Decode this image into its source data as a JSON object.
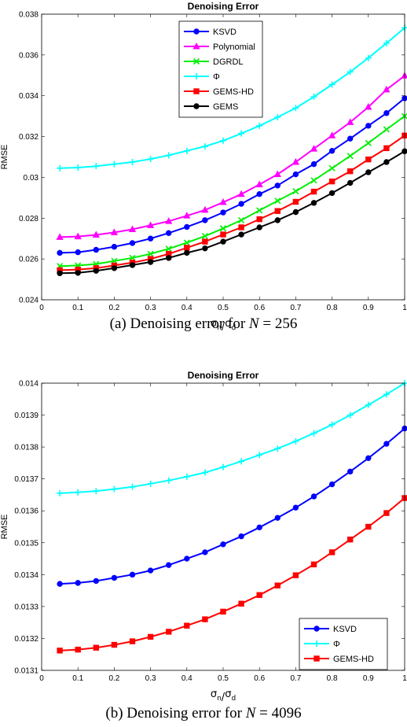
{
  "figure": {
    "captions": [
      {
        "prefix": "(a) Denoising error for ",
        "var": "N",
        "suffix": " = 256"
      },
      {
        "prefix": "(b) Denoising error for ",
        "var": "N",
        "suffix": " = 4096"
      }
    ]
  },
  "chart_data": [
    {
      "type": "line",
      "title": "Denoising Error",
      "xlabel": "σn/σd",
      "ylabel": "RMSE",
      "xlim": [
        0,
        1
      ],
      "ylim": [
        0.024,
        0.038
      ],
      "xticks": [
        0,
        0.1,
        0.2,
        0.3,
        0.4,
        0.5,
        0.6,
        0.7,
        0.8,
        0.9,
        1
      ],
      "xtick_labels": [
        "0",
        "0.1",
        "0.2",
        "0.3",
        "0.4",
        "0.5",
        "0.6",
        "0.7",
        "0.8",
        "0.9",
        "1"
      ],
      "yticks": [
        0.024,
        0.026,
        0.028,
        0.03,
        0.032,
        0.034,
        0.036,
        0.038
      ],
      "ytick_labels": [
        "0.024",
        "0.026",
        "0.028",
        "0.03",
        "0.032",
        "0.034",
        "0.036",
        "0.038"
      ],
      "legend_position": "top-center",
      "x": [
        0.05,
        0.1,
        0.15,
        0.2,
        0.25,
        0.3,
        0.35,
        0.4,
        0.45,
        0.5,
        0.55,
        0.6,
        0.65,
        0.7,
        0.75,
        0.8,
        0.85,
        0.9,
        0.95,
        1.0
      ],
      "series": [
        {
          "name": "KSVD",
          "color": "#0000ff",
          "marker": "circle",
          "values": [
            0.0263,
            0.02633,
            0.02645,
            0.0266,
            0.02678,
            0.027,
            0.02727,
            0.02757,
            0.0279,
            0.02828,
            0.0287,
            0.02918,
            0.0296,
            0.03015,
            0.03065,
            0.0313,
            0.0319,
            0.03253,
            0.03315,
            0.03388
          ]
        },
        {
          "name": "Polynomial",
          "color": "#ff00ff",
          "marker": "triangle",
          "values": [
            0.02707,
            0.0271,
            0.02718,
            0.0273,
            0.02745,
            0.02765,
            0.02785,
            0.02812,
            0.0284,
            0.02878,
            0.02918,
            0.02965,
            0.03015,
            0.03075,
            0.0314,
            0.03205,
            0.0327,
            0.03345,
            0.0343,
            0.03498
          ]
        },
        {
          "name": "DGRDL",
          "color": "#00ee00",
          "marker": "x",
          "values": [
            0.02565,
            0.02568,
            0.02575,
            0.0259,
            0.02605,
            0.02625,
            0.0265,
            0.0268,
            0.02712,
            0.0275,
            0.0279,
            0.02838,
            0.02885,
            0.02932,
            0.02985,
            0.03045,
            0.03105,
            0.03168,
            0.03235,
            0.033
          ]
        },
        {
          "name": "Φ",
          "color": "#00ffff",
          "marker": "plus",
          "values": [
            0.03045,
            0.03048,
            0.03055,
            0.03065,
            0.03075,
            0.0309,
            0.03108,
            0.0313,
            0.03152,
            0.0318,
            0.03215,
            0.03253,
            0.03295,
            0.0334,
            0.03395,
            0.03455,
            0.03517,
            0.03585,
            0.03658,
            0.03733
          ]
        },
        {
          "name": "GEMS-HD",
          "color": "#ff0000",
          "marker": "square",
          "values": [
            0.02545,
            0.02548,
            0.02555,
            0.02568,
            0.02582,
            0.026,
            0.02625,
            0.02655,
            0.02685,
            0.0272,
            0.02755,
            0.02795,
            0.02835,
            0.0288,
            0.0293,
            0.0298,
            0.0303,
            0.03088,
            0.03143,
            0.03205
          ]
        },
        {
          "name": "GEMS",
          "color": "#000000",
          "marker": "circle",
          "values": [
            0.0253,
            0.02532,
            0.02542,
            0.02555,
            0.0257,
            0.02585,
            0.02605,
            0.0263,
            0.02652,
            0.02685,
            0.0272,
            0.02755,
            0.0279,
            0.0283,
            0.02875,
            0.02923,
            0.02973,
            0.03025,
            0.03075,
            0.03128
          ]
        }
      ]
    },
    {
      "type": "line",
      "title": "Denoising Error",
      "xlabel": "σn/σd",
      "ylabel": "RMSE",
      "xlim": [
        0,
        1
      ],
      "ylim": [
        0.0131,
        0.014
      ],
      "xticks": [
        0,
        0.1,
        0.2,
        0.3,
        0.4,
        0.5,
        0.6,
        0.7,
        0.8,
        0.9,
        1
      ],
      "xtick_labels": [
        "0",
        "0.1",
        "0.2",
        "0.3",
        "0.4",
        "0.5",
        "0.6",
        "0.7",
        "0.8",
        "0.9",
        "1"
      ],
      "yticks": [
        0.0131,
        0.0132,
        0.0133,
        0.0134,
        0.0135,
        0.0136,
        0.0137,
        0.0138,
        0.0139,
        0.014
      ],
      "ytick_labels": [
        "0.0131",
        "0.0132",
        "0.0133",
        "0.0134",
        "0.0135",
        "0.0136",
        "0.0137",
        "0.0138",
        "0.0139",
        "0.014"
      ],
      "legend_position": "bottom-right",
      "x": [
        0.05,
        0.1,
        0.15,
        0.2,
        0.25,
        0.3,
        0.35,
        0.4,
        0.45,
        0.5,
        0.55,
        0.6,
        0.65,
        0.7,
        0.75,
        0.8,
        0.85,
        0.9,
        0.95,
        1.0
      ],
      "series": [
        {
          "name": "KSVD",
          "color": "#0000ff",
          "marker": "circle",
          "values": [
            0.013371,
            0.013374,
            0.01338,
            0.01339,
            0.0134,
            0.013413,
            0.01343,
            0.01345,
            0.01347,
            0.013495,
            0.01352,
            0.013548,
            0.013578,
            0.01361,
            0.013645,
            0.013683,
            0.013723,
            0.013765,
            0.01381,
            0.013858
          ]
        },
        {
          "name": "Φ",
          "color": "#00ffff",
          "marker": "plus",
          "values": [
            0.013655,
            0.013658,
            0.013662,
            0.013668,
            0.013675,
            0.013685,
            0.013695,
            0.013707,
            0.01372,
            0.013737,
            0.013755,
            0.013775,
            0.013795,
            0.013818,
            0.013843,
            0.01387,
            0.0139,
            0.013932,
            0.013965,
            0.014
          ]
        },
        {
          "name": "GEMS-HD",
          "color": "#ff0000",
          "marker": "square",
          "values": [
            0.013162,
            0.013165,
            0.013171,
            0.01318,
            0.013191,
            0.013205,
            0.013221,
            0.01324,
            0.01326,
            0.013284,
            0.013309,
            0.013336,
            0.013366,
            0.013398,
            0.013432,
            0.01347,
            0.01351,
            0.01355,
            0.013593,
            0.01364
          ]
        }
      ]
    }
  ]
}
